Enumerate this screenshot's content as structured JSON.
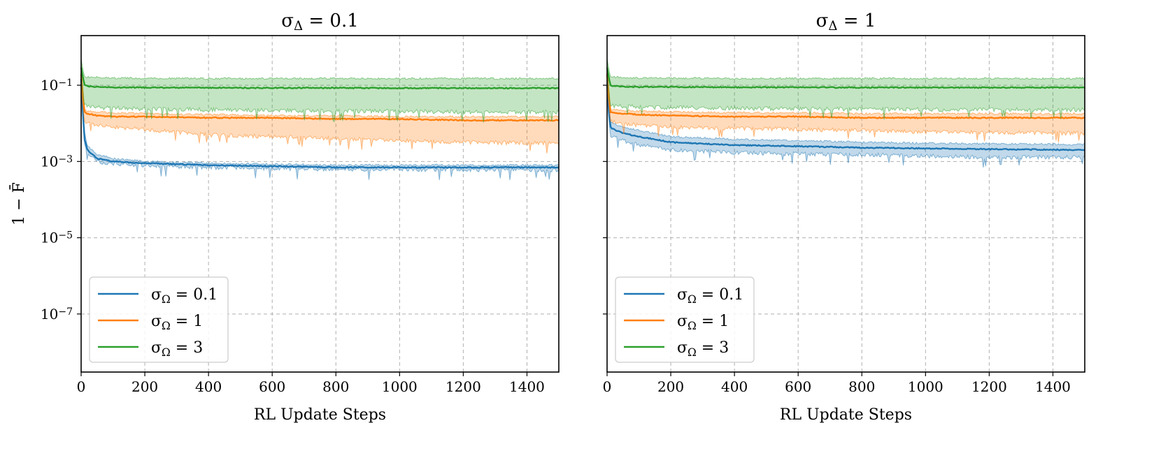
{
  "chart_data": [
    {
      "type": "line",
      "title": "σ_Δ = 0.1",
      "xlabel": "RL Update Steps",
      "ylabel": "1 − F̄",
      "xlim": [
        0,
        1500
      ],
      "ylim": [
        3e-09,
        2
      ],
      "yscale": "log",
      "grid": true,
      "legend_placement": "lower-left",
      "x_ticks": [
        "0",
        "200",
        "400",
        "600",
        "800",
        "1000",
        "1200",
        "1400"
      ],
      "y_ticks": [
        {
          "value": 0.1,
          "base": "10",
          "exp": "−1"
        },
        {
          "value": 0.001,
          "base": "10",
          "exp": "−3"
        },
        {
          "value": 1e-05,
          "base": "10",
          "exp": "−5"
        },
        {
          "value": 1e-07,
          "base": "10",
          "exp": "−7"
        }
      ],
      "series": [
        {
          "name": "σ_Ω = 0.1",
          "color": "#1f77b4",
          "x": [
            0,
            10,
            20,
            50,
            100,
            200,
            400,
            600,
            800,
            1000,
            1200,
            1500
          ],
          "mean": [
            0.15,
            0.004,
            0.002,
            0.0012,
            0.001,
            0.0009,
            0.0008,
            0.00075,
            0.0007,
            0.0007,
            0.0007,
            0.0007
          ],
          "lower": [
            0.1,
            0.003,
            0.0016,
            0.001,
            0.00088,
            0.0008,
            0.0007,
            0.00066,
            0.00063,
            0.00062,
            0.00061,
            0.0006
          ],
          "upper": [
            0.3,
            0.006,
            0.0026,
            0.0015,
            0.0012,
            0.001,
            0.0009,
            0.00085,
            0.0008,
            0.0008,
            0.0008,
            0.0008
          ]
        },
        {
          "name": "σ_Ω = 1",
          "color": "#ff7f0e",
          "x": [
            0,
            10,
            20,
            50,
            100,
            200,
            400,
            600,
            800,
            1000,
            1200,
            1500
          ],
          "mean": [
            0.2,
            0.02,
            0.018,
            0.016,
            0.015,
            0.015,
            0.014,
            0.014,
            0.013,
            0.013,
            0.012,
            0.012
          ],
          "lower": [
            0.1,
            0.011,
            0.01,
            0.009,
            0.008,
            0.007,
            0.005,
            0.0045,
            0.004,
            0.0035,
            0.0032,
            0.003
          ],
          "upper": [
            0.3,
            0.022,
            0.021,
            0.02,
            0.019,
            0.018,
            0.017,
            0.016,
            0.016,
            0.015,
            0.015,
            0.015
          ]
        },
        {
          "name": "σ_Ω = 3",
          "color": "#2ca02c",
          "x": [
            0,
            10,
            20,
            50,
            100,
            200,
            400,
            600,
            800,
            1000,
            1200,
            1500
          ],
          "mean": [
            0.3,
            0.1,
            0.095,
            0.09,
            0.088,
            0.087,
            0.086,
            0.085,
            0.085,
            0.084,
            0.084,
            0.084
          ],
          "lower": [
            0.15,
            0.03,
            0.028,
            0.026,
            0.025,
            0.024,
            0.023,
            0.022,
            0.021,
            0.021,
            0.02,
            0.02
          ],
          "upper": [
            0.5,
            0.17,
            0.165,
            0.16,
            0.155,
            0.15,
            0.15,
            0.15,
            0.15,
            0.15,
            0.15,
            0.15
          ]
        }
      ]
    },
    {
      "type": "line",
      "title": "σ_Δ = 1",
      "xlabel": "RL Update Steps",
      "ylabel": "",
      "xlim": [
        0,
        1500
      ],
      "ylim": [
        3e-09,
        2
      ],
      "yscale": "log",
      "grid": true,
      "legend_placement": "lower-left",
      "x_ticks": [
        "0",
        "200",
        "400",
        "600",
        "800",
        "1000",
        "1200",
        "1400"
      ],
      "series": [
        {
          "name": "σ_Ω = 0.1",
          "color": "#1f77b4",
          "x": [
            0,
            10,
            20,
            50,
            100,
            200,
            400,
            600,
            800,
            1000,
            1200,
            1500
          ],
          "mean": [
            0.1,
            0.008,
            0.007,
            0.0055,
            0.0045,
            0.0032,
            0.0027,
            0.0025,
            0.0023,
            0.0022,
            0.0021,
            0.002
          ],
          "lower": [
            0.05,
            0.005,
            0.0045,
            0.0035,
            0.0028,
            0.002,
            0.0017,
            0.0016,
            0.0015,
            0.0014,
            0.0013,
            0.0013
          ],
          "upper": [
            0.2,
            0.011,
            0.01,
            0.008,
            0.0065,
            0.0045,
            0.0038,
            0.0035,
            0.0032,
            0.003,
            0.0029,
            0.0028
          ]
        },
        {
          "name": "σ_Ω = 1",
          "color": "#ff7f0e",
          "x": [
            0,
            10,
            20,
            50,
            100,
            200,
            400,
            600,
            800,
            1000,
            1200,
            1500
          ],
          "mean": [
            0.2,
            0.02,
            0.019,
            0.018,
            0.017,
            0.016,
            0.015,
            0.015,
            0.014,
            0.014,
            0.014,
            0.014
          ],
          "lower": [
            0.1,
            0.012,
            0.011,
            0.01,
            0.009,
            0.008,
            0.0075,
            0.007,
            0.0065,
            0.006,
            0.0058,
            0.0055
          ],
          "upper": [
            0.3,
            0.024,
            0.023,
            0.022,
            0.021,
            0.02,
            0.019,
            0.019,
            0.018,
            0.018,
            0.018,
            0.018
          ]
        },
        {
          "name": "σ_Ω = 3",
          "color": "#2ca02c",
          "x": [
            0,
            10,
            20,
            50,
            100,
            200,
            400,
            600,
            800,
            1000,
            1200,
            1500
          ],
          "mean": [
            0.3,
            0.1,
            0.096,
            0.092,
            0.09,
            0.09,
            0.088,
            0.088,
            0.087,
            0.087,
            0.087,
            0.087
          ],
          "lower": [
            0.15,
            0.03,
            0.029,
            0.028,
            0.027,
            0.026,
            0.025,
            0.024,
            0.024,
            0.023,
            0.023,
            0.023
          ],
          "upper": [
            0.5,
            0.17,
            0.165,
            0.16,
            0.155,
            0.155,
            0.15,
            0.15,
            0.15,
            0.15,
            0.15,
            0.15
          ]
        }
      ]
    }
  ]
}
